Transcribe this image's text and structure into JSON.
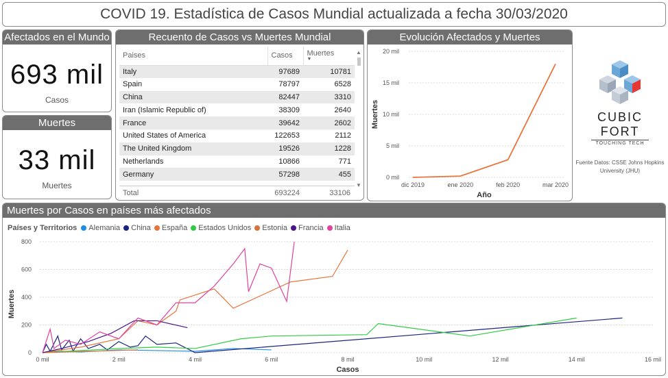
{
  "header": {
    "title": "COVID 19. Estadística de Casos Mundial actualizada a fecha 30/03/2020"
  },
  "kpi_cases": {
    "heading": "Afectados en el Mundo",
    "value": "693 mil",
    "unit": "Casos"
  },
  "kpi_deaths": {
    "heading": "Muertes",
    "value": "33 mil",
    "unit": "Muertes"
  },
  "table": {
    "heading": "Recuento de Casos vs Muertes Mundial",
    "columns": [
      "Paises",
      "Casos",
      "Muertes"
    ],
    "rows": [
      [
        "Italy",
        "97689",
        "10781"
      ],
      [
        "Spain",
        "78797",
        "6528"
      ],
      [
        "China",
        "82447",
        "3310"
      ],
      [
        "Iran (Islamic Republic of)",
        "38309",
        "2640"
      ],
      [
        "France",
        "39642",
        "2602"
      ],
      [
        "United States of America",
        "122653",
        "2112"
      ],
      [
        "The United Kingdom",
        "19526",
        "1228"
      ],
      [
        "Netherlands",
        "10866",
        "771"
      ],
      [
        "Germany",
        "57298",
        "455"
      ]
    ],
    "total": [
      "Total",
      "693224",
      "33106"
    ]
  },
  "logo": {
    "name": "CUBIC FORT",
    "tagline": "TOUCHING TECH"
  },
  "source": "Fuente Datos: CSSE Johns Hopkins University (JHU)",
  "chart_data": [
    {
      "type": "line",
      "title": "Evolución Afectados y Muertes",
      "xlabel": "Año",
      "ylabel": "Muertes",
      "categories": [
        "dic 2019",
        "ene 2020",
        "feb 2020",
        "mar 2020"
      ],
      "values": [
        0,
        200,
        2800,
        18000
      ],
      "y_ticks": [
        "0 mil",
        "5 mil",
        "10 mil",
        "15 mil",
        "20 mil"
      ],
      "ylim": [
        0,
        20000
      ],
      "grid": true,
      "color": "#e8743b"
    },
    {
      "type": "line",
      "title": "Muertes por Casos en países más afectados",
      "xlabel": "Casos",
      "ylabel": "Muertes",
      "legend_title": "Países y Territorios",
      "legend_position": "top-left",
      "x_ticks": [
        "0 mil",
        "2 mil",
        "4 mil",
        "6 mil",
        "8 mil",
        "10 mil",
        "12 mil",
        "14 mil",
        "16 mil"
      ],
      "y_ticks": [
        "0",
        "200",
        "400",
        "600",
        "800"
      ],
      "xlim": [
        0,
        16000
      ],
      "ylim": [
        0,
        800
      ],
      "grid": true,
      "series": [
        {
          "name": "Alemania",
          "color": "#1f8fe5",
          "points": [
            [
              0,
              0
            ],
            [
              500,
              10
            ],
            [
              1000,
              5
            ],
            [
              2000,
              20
            ],
            [
              3000,
              15
            ],
            [
              4000,
              10
            ],
            [
              5000,
              30
            ],
            [
              6000,
              20
            ]
          ]
        },
        {
          "name": "China",
          "color": "#1a237e",
          "points": [
            [
              0,
              0
            ],
            [
              100,
              60
            ],
            [
              200,
              10
            ],
            [
              400,
              120
            ],
            [
              500,
              20
            ],
            [
              700,
              90
            ],
            [
              800,
              10
            ],
            [
              1000,
              100
            ],
            [
              1200,
              30
            ],
            [
              1500,
              60
            ],
            [
              1700,
              20
            ],
            [
              2000,
              80
            ],
            [
              2300,
              40
            ],
            [
              2500,
              50
            ],
            [
              2700,
              120
            ],
            [
              3000,
              60
            ],
            [
              3500,
              70
            ],
            [
              4000,
              0
            ],
            [
              15200,
              250
            ]
          ]
        },
        {
          "name": "España",
          "color": "#e8743b",
          "points": [
            [
              0,
              0
            ],
            [
              1000,
              40
            ],
            [
              2000,
              100
            ],
            [
              2500,
              230
            ],
            [
              3000,
              200
            ],
            [
              3300,
              260
            ],
            [
              3500,
              300
            ],
            [
              3600,
              380
            ],
            [
              4500,
              460
            ],
            [
              5000,
              320
            ],
            [
              6500,
              510
            ],
            [
              7600,
              550
            ],
            [
              8000,
              740
            ]
          ]
        },
        {
          "name": "Estados Unidos",
          "color": "#2ecc40",
          "points": [
            [
              0,
              0
            ],
            [
              2000,
              30
            ],
            [
              3000,
              40
            ],
            [
              4000,
              30
            ],
            [
              5200,
              100
            ],
            [
              6000,
              120
            ],
            [
              8500,
              130
            ],
            [
              8800,
              210
            ],
            [
              11200,
              120
            ],
            [
              14000,
              250
            ]
          ]
        },
        {
          "name": "Estonia",
          "color": "#d4723a",
          "points": [
            [
              0,
              0
            ],
            [
              1200,
              10
            ],
            [
              2500,
              20
            ]
          ]
        },
        {
          "name": "Francia",
          "color": "#4a148c",
          "points": [
            [
              0,
              0
            ],
            [
              500,
              30
            ],
            [
              1200,
              80
            ],
            [
              1800,
              140
            ],
            [
              2400,
              230
            ],
            [
              3000,
              230
            ],
            [
              3800,
              180
            ]
          ]
        },
        {
          "name": "Italia",
          "color": "#e040a0",
          "points": [
            [
              0,
              0
            ],
            [
              200,
              170
            ],
            [
              300,
              30
            ],
            [
              600,
              90
            ],
            [
              1000,
              60
            ],
            [
              1500,
              150
            ],
            [
              2000,
              100
            ],
            [
              2500,
              250
            ],
            [
              3000,
              200
            ],
            [
              3500,
              360
            ],
            [
              4000,
              360
            ],
            [
              4500,
              480
            ],
            [
              5000,
              640
            ],
            [
              5300,
              750
            ],
            [
              5400,
              440
            ],
            [
              5700,
              640
            ],
            [
              6000,
              610
            ],
            [
              6400,
              370
            ],
            [
              6600,
              800
            ]
          ]
        }
      ]
    }
  ]
}
